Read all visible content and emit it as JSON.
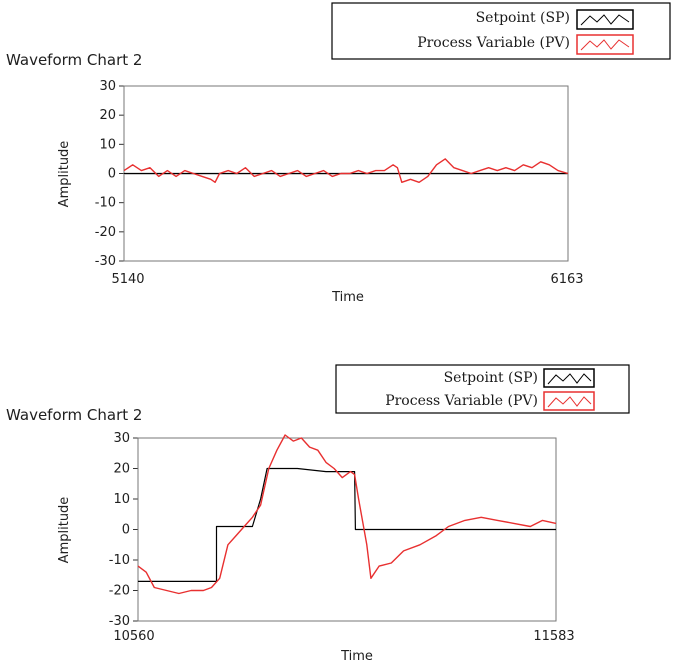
{
  "chart_data": [
    {
      "type": "line",
      "title": "Waveform Chart 2",
      "xlabel": "Time",
      "ylabel": "Amplitude",
      "ylim": [
        -30,
        30
      ],
      "xlim": [
        5140,
        6163
      ],
      "x_ticks": [
        "5140",
        "6163"
      ],
      "y_ticks": [
        "30",
        "20",
        "10",
        "0",
        "-10",
        "-20",
        "-30"
      ],
      "legend": {
        "position": "top-right"
      },
      "series": [
        {
          "name": "Setpoint (SP)",
          "color": "#000000",
          "points": [
            [
              5140,
              0
            ],
            [
              6163,
              0
            ]
          ]
        },
        {
          "name": "Process Variable (PV)",
          "color": "#e83030",
          "points": [
            [
              5140,
              1
            ],
            [
              5160,
              3
            ],
            [
              5180,
              1
            ],
            [
              5200,
              2
            ],
            [
              5220,
              -1
            ],
            [
              5240,
              1
            ],
            [
              5260,
              -1
            ],
            [
              5280,
              1
            ],
            [
              5300,
              0
            ],
            [
              5320,
              -1
            ],
            [
              5340,
              -2
            ],
            [
              5350,
              -3
            ],
            [
              5360,
              0
            ],
            [
              5380,
              1
            ],
            [
              5400,
              0
            ],
            [
              5420,
              2
            ],
            [
              5440,
              -1
            ],
            [
              5460,
              0
            ],
            [
              5480,
              1
            ],
            [
              5500,
              -1
            ],
            [
              5520,
              0
            ],
            [
              5540,
              1
            ],
            [
              5560,
              -1
            ],
            [
              5580,
              0
            ],
            [
              5600,
              1
            ],
            [
              5620,
              -1
            ],
            [
              5640,
              0
            ],
            [
              5660,
              0
            ],
            [
              5680,
              1
            ],
            [
              5700,
              0
            ],
            [
              5720,
              1
            ],
            [
              5740,
              1
            ],
            [
              5760,
              3
            ],
            [
              5770,
              2
            ],
            [
              5780,
              -3
            ],
            [
              5800,
              -2
            ],
            [
              5820,
              -3
            ],
            [
              5840,
              -1
            ],
            [
              5860,
              3
            ],
            [
              5880,
              5
            ],
            [
              5900,
              2
            ],
            [
              5920,
              1
            ],
            [
              5940,
              0
            ],
            [
              5960,
              1
            ],
            [
              5980,
              2
            ],
            [
              6000,
              1
            ],
            [
              6020,
              2
            ],
            [
              6040,
              1
            ],
            [
              6060,
              3
            ],
            [
              6080,
              2
            ],
            [
              6100,
              4
            ],
            [
              6120,
              3
            ],
            [
              6140,
              1
            ],
            [
              6163,
              0
            ]
          ]
        }
      ]
    },
    {
      "type": "line",
      "title": "Waveform Chart 2",
      "xlabel": "Time",
      "ylabel": "Amplitude",
      "ylim": [
        -30,
        30
      ],
      "xlim": [
        10560,
        11583
      ],
      "x_ticks": [
        "10560",
        "11583"
      ],
      "y_ticks": [
        "30",
        "20",
        "10",
        "0",
        "-10",
        "-20",
        "-30"
      ],
      "legend": {
        "position": "top-right"
      },
      "series": [
        {
          "name": "Setpoint (SP)",
          "color": "#000000",
          "points": [
            [
              10560,
              -17
            ],
            [
              10752,
              -17
            ],
            [
              10752,
              1
            ],
            [
              10840,
              1
            ],
            [
              10860,
              10
            ],
            [
              10876,
              20
            ],
            [
              10950,
              20
            ],
            [
              11020,
              19
            ],
            [
              11090,
              19
            ],
            [
              11092,
              0
            ],
            [
              11583,
              0
            ]
          ]
        },
        {
          "name": "Process Variable (PV)",
          "color": "#e83030",
          "points": [
            [
              10560,
              -12
            ],
            [
              10580,
              -14
            ],
            [
              10600,
              -19
            ],
            [
              10630,
              -20
            ],
            [
              10660,
              -21
            ],
            [
              10690,
              -20
            ],
            [
              10720,
              -20
            ],
            [
              10740,
              -19
            ],
            [
              10760,
              -16
            ],
            [
              10780,
              -5
            ],
            [
              10800,
              -2
            ],
            [
              10820,
              1
            ],
            [
              10840,
              4
            ],
            [
              10860,
              8
            ],
            [
              10880,
              20
            ],
            [
              10900,
              26
            ],
            [
              10920,
              31
            ],
            [
              10940,
              29
            ],
            [
              10960,
              30
            ],
            [
              10980,
              27
            ],
            [
              11000,
              26
            ],
            [
              11020,
              22
            ],
            [
              11040,
              20
            ],
            [
              11060,
              17
            ],
            [
              11080,
              19
            ],
            [
              11090,
              18
            ],
            [
              11100,
              10
            ],
            [
              11120,
              -5
            ],
            [
              11130,
              -16
            ],
            [
              11150,
              -12
            ],
            [
              11180,
              -11
            ],
            [
              11210,
              -7
            ],
            [
              11250,
              -5
            ],
            [
              11290,
              -2
            ],
            [
              11320,
              1
            ],
            [
              11360,
              3
            ],
            [
              11400,
              4
            ],
            [
              11440,
              3
            ],
            [
              11480,
              2
            ],
            [
              11520,
              1
            ],
            [
              11550,
              3
            ],
            [
              11583,
              2
            ]
          ]
        }
      ]
    }
  ]
}
